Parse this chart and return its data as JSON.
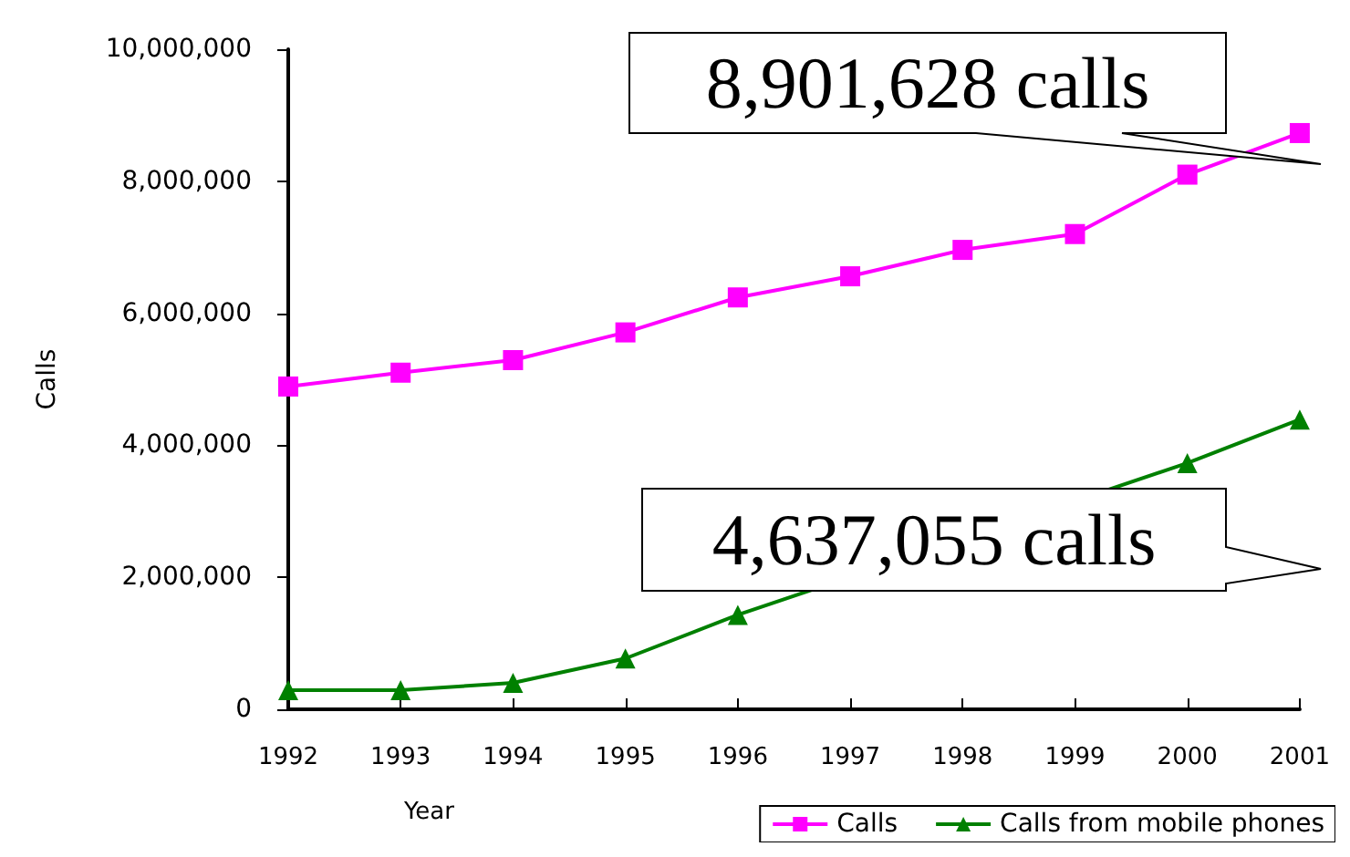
{
  "chart_data": {
    "type": "line",
    "xlabel": "Year",
    "ylabel": "Calls",
    "categories": [
      "1992",
      "1993",
      "1994",
      "1995",
      "1996",
      "1997",
      "1998",
      "1999",
      "2000",
      "2001"
    ],
    "series": [
      {
        "name": "Calls",
        "color": "#ff00ff",
        "marker": "square",
        "values": [
          4890000,
          5100000,
          5290000,
          5710000,
          6240000,
          6560000,
          6960000,
          7200000,
          8100000,
          8730000
        ]
      },
      {
        "name": "Calls from mobile phones",
        "color": "#008000",
        "marker": "triangle",
        "values": [
          290000,
          290000,
          400000,
          770000,
          1430000,
          null,
          null,
          null,
          3730000,
          4390000
        ]
      }
    ],
    "ylim": [
      0,
      10000000
    ],
    "yticks": [
      0,
      {
        "value": 2000000,
        "label": "2,000,000"
      },
      {
        "value": 4000000,
        "label": "4,000,000"
      },
      {
        "value": 6000000,
        "label": "6,000,000"
      },
      {
        "value": 8000000,
        "label": "8,000,000"
      },
      {
        "value": 10000000,
        "label": "10,000,000"
      }
    ],
    "grid": false,
    "legend": "bottom right",
    "annotations": [
      "8,901,628 calls",
      "4,637,055 calls"
    ]
  }
}
